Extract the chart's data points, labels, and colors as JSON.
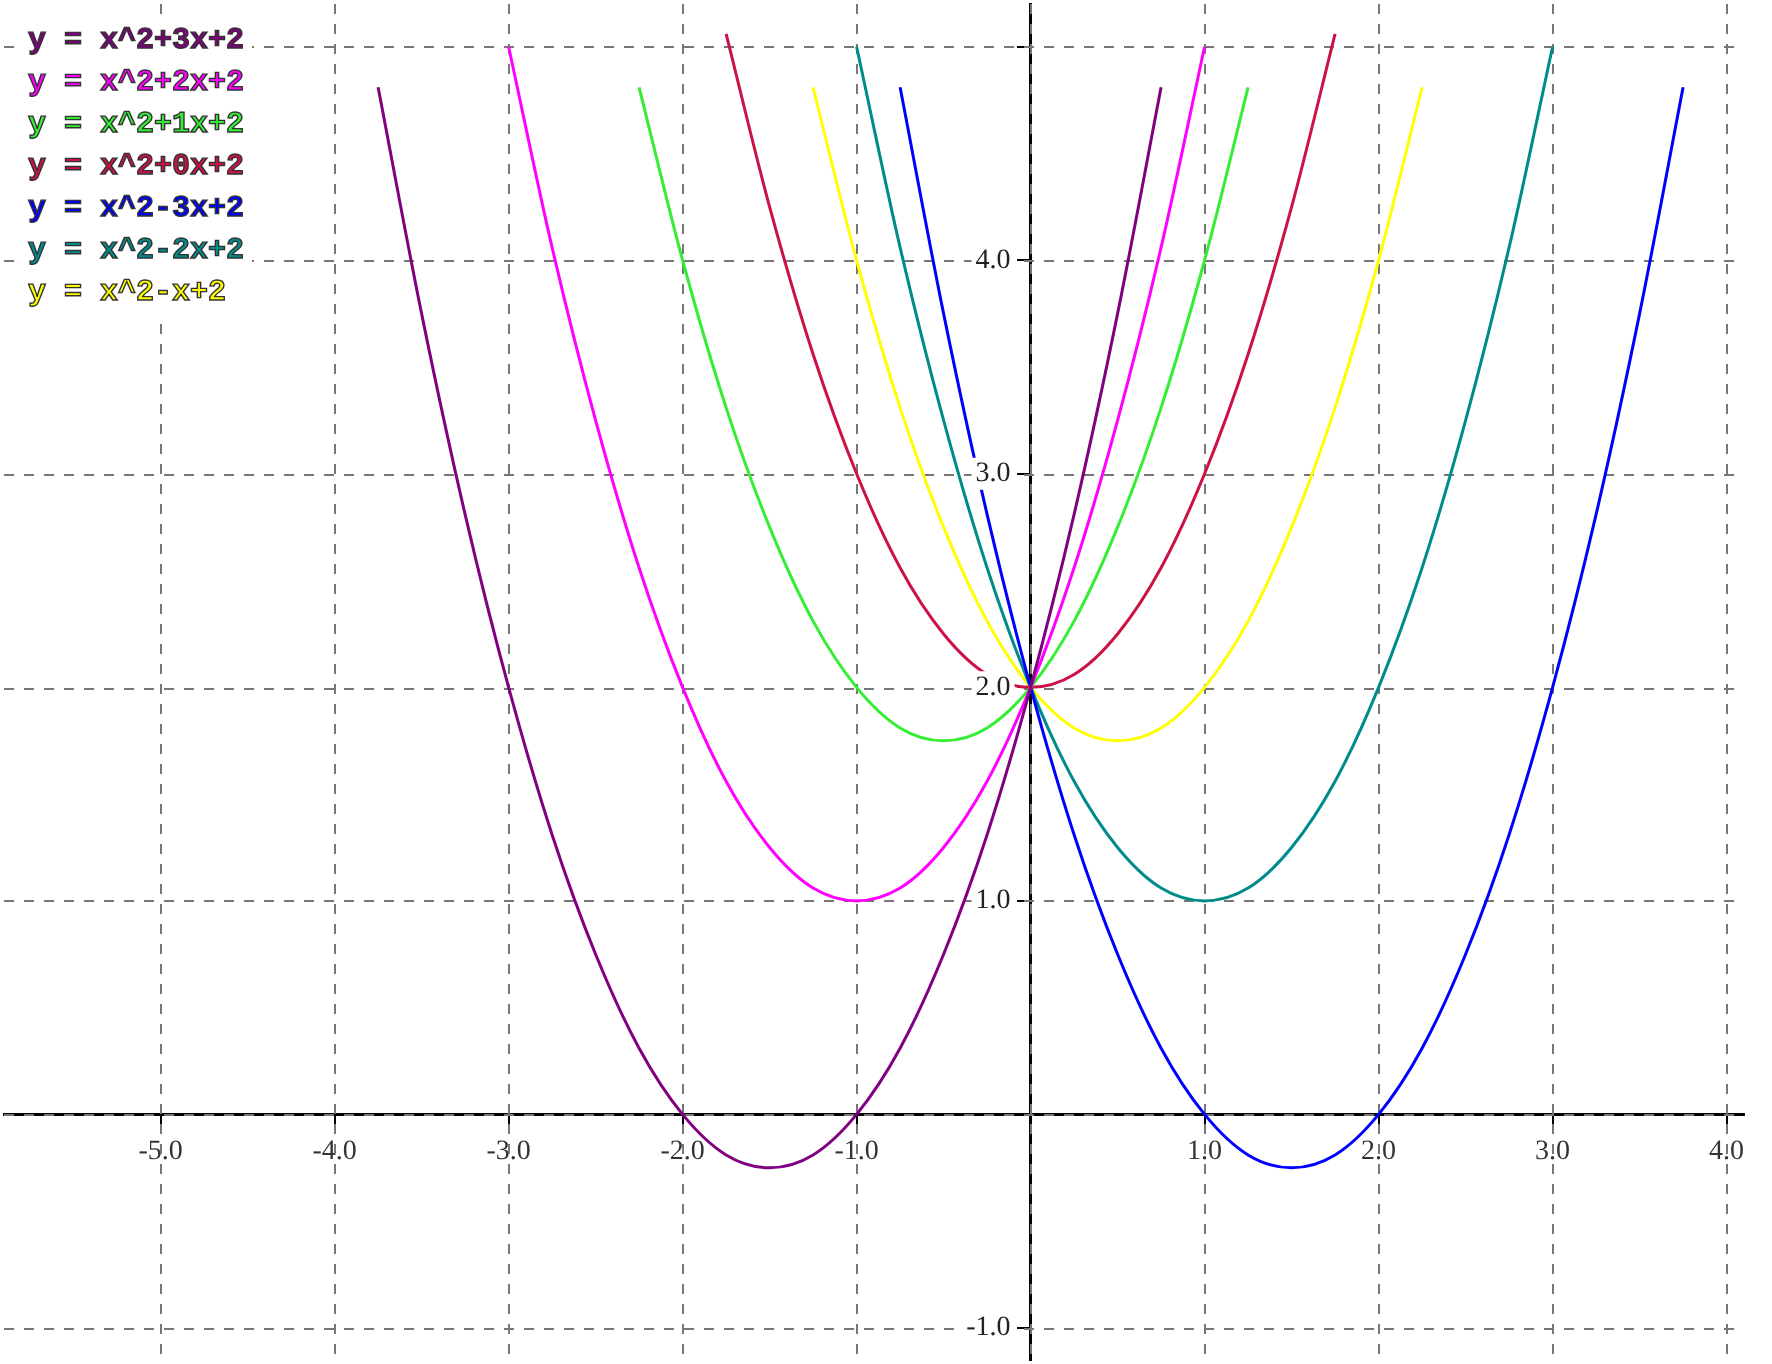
{
  "chart_data": {
    "type": "line",
    "xlim": [
      -5.9,
      4.1
    ],
    "ylim": [
      -1.15,
      5.2
    ],
    "xticks": [
      {
        "value": -5,
        "label": "-5.0"
      },
      {
        "value": -4,
        "label": "-4.0"
      },
      {
        "value": -3,
        "label": "-3.0"
      },
      {
        "value": -2,
        "label": "-2.0"
      },
      {
        "value": -1,
        "label": "-1.0"
      },
      {
        "value": 0,
        "label": null
      },
      {
        "value": 1,
        "label": "1.0"
      },
      {
        "value": 2,
        "label": "2.0"
      },
      {
        "value": 3,
        "label": "3.0"
      },
      {
        "value": 4,
        "label": "4.0"
      }
    ],
    "yticks": [
      {
        "value": -1,
        "label": "-1.0"
      },
      {
        "value": 0,
        "label": null
      },
      {
        "value": 1,
        "label": "1.0"
      },
      {
        "value": 2,
        "label": "2.0"
      },
      {
        "value": 3,
        "label": "3.0"
      },
      {
        "value": 4,
        "label": "4.0"
      },
      {
        "value": 5,
        "label": null
      }
    ],
    "grid": true,
    "legend": "top left",
    "marker": "none",
    "line_style": "solid",
    "series": [
      {
        "name": "y = x^2+3x+2",
        "color": "#800080",
        "x": [
          -3.75,
          -3.5,
          -3.25,
          -3,
          -2.75,
          -2.5,
          -2.25,
          -2,
          -1.75,
          -1.5,
          -1.25,
          -1,
          -0.75,
          -0.5,
          -0.25,
          0,
          0.25,
          0.5,
          0.75
        ],
        "values": [
          4.81,
          3.75,
          2.81,
          2,
          1.31,
          0.75,
          0.31,
          0,
          -0.19,
          -0.25,
          -0.19,
          0,
          0.31,
          0.75,
          1.31,
          2,
          2.81,
          3.75,
          4.81
        ]
      },
      {
        "name": "y = x^2+2x+2",
        "color": "#ff00ff",
        "x": [
          -3,
          -2.75,
          -2.5,
          -2.25,
          -2,
          -1.75,
          -1.5,
          -1.25,
          -1,
          -0.75,
          -0.5,
          -0.25,
          0,
          0.25,
          0.5,
          0.75,
          1
        ],
        "values": [
          5,
          4.06,
          3.25,
          2.56,
          2,
          1.56,
          1.25,
          1.06,
          1,
          1.06,
          1.25,
          1.56,
          2,
          2.56,
          3.25,
          4.06,
          5
        ]
      },
      {
        "name": "y = x^2+1x+2",
        "color": "#33ee33",
        "x": [
          -2.25,
          -2,
          -1.75,
          -1.5,
          -1.25,
          -1,
          -0.75,
          -0.5,
          -0.25,
          0,
          0.25,
          0.5,
          0.75,
          1,
          1.25
        ],
        "values": [
          4.81,
          4,
          3.31,
          2.75,
          2.31,
          2,
          1.81,
          1.75,
          1.81,
          2,
          2.31,
          2.75,
          3.31,
          4,
          4.81
        ]
      },
      {
        "name": "y = x^2+0x+2",
        "color": "#cc1144",
        "x": [
          -1.75,
          -1.5,
          -1.25,
          -1,
          -0.75,
          -0.5,
          -0.25,
          0,
          0.25,
          0.5,
          0.75,
          1,
          1.25,
          1.5,
          1.75
        ],
        "values": [
          5.06,
          4.25,
          3.56,
          3,
          2.56,
          2.25,
          2.06,
          2,
          2.06,
          2.25,
          2.56,
          3,
          3.56,
          4.25,
          5.06
        ]
      },
      {
        "name": "y = x^2-3x+2",
        "color": "#0000ff",
        "x": [
          -0.75,
          -0.5,
          -0.25,
          0,
          0.25,
          0.5,
          0.75,
          1,
          1.25,
          1.5,
          1.75,
          2,
          2.25,
          2.5,
          2.75,
          3,
          3.25,
          3.5,
          3.75
        ],
        "values": [
          4.81,
          3.75,
          2.81,
          2,
          1.31,
          0.75,
          0.31,
          0,
          -0.19,
          -0.25,
          -0.19,
          0,
          0.31,
          0.75,
          1.31,
          2,
          2.81,
          3.75,
          4.81
        ]
      },
      {
        "name": "y = x^2-2x+2",
        "color": "#008b8b",
        "x": [
          -1,
          -0.75,
          -0.5,
          -0.25,
          0,
          0.25,
          0.5,
          0.75,
          1,
          1.25,
          1.5,
          1.75,
          2,
          2.25,
          2.5,
          2.75,
          3
        ],
        "values": [
          5,
          4.06,
          3.25,
          2.56,
          2,
          1.56,
          1.25,
          1.06,
          1,
          1.06,
          1.25,
          1.56,
          2,
          2.56,
          3.25,
          4.06,
          5
        ]
      },
      {
        "name": "y = x^2-x+2",
        "color": "#ffff00",
        "x": [
          -1.25,
          -1,
          -0.75,
          -0.5,
          -0.25,
          0,
          0.25,
          0.5,
          0.75,
          1,
          1.25,
          1.5,
          1.75,
          2,
          2.25
        ],
        "values": [
          4.81,
          4,
          3.31,
          2.75,
          2.31,
          2,
          1.81,
          1.75,
          1.81,
          2,
          2.31,
          2.75,
          3.31,
          4,
          4.81
        ]
      }
    ]
  }
}
